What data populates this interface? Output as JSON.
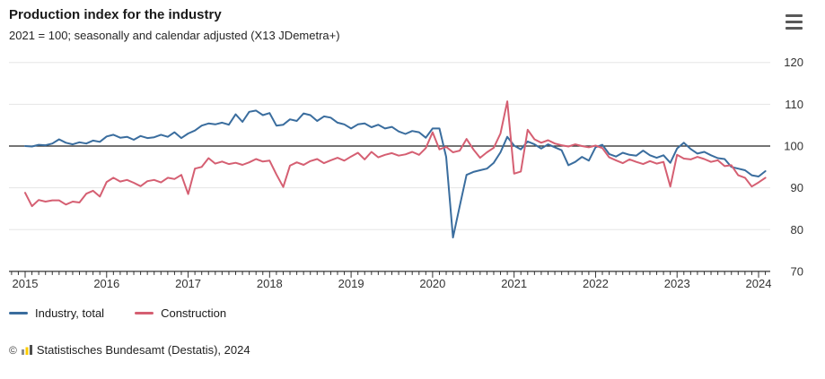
{
  "header": {
    "title": "Production index for the industry",
    "subtitle": "2021 = 100; seasonally and calendar adjusted (X13 JDemetra+)"
  },
  "menu": {
    "icon": "hamburger-menu-icon"
  },
  "chart_data": {
    "type": "line",
    "frequency": "monthly",
    "x_start": "2015-01",
    "x_end": "2024-02",
    "x_tick_labels": [
      "2015",
      "2016",
      "2017",
      "2018",
      "2019",
      "2020",
      "2021",
      "2022",
      "2023",
      "2024"
    ],
    "ylim": [
      70,
      120
    ],
    "y_ticks": [
      70,
      80,
      90,
      100,
      110,
      120
    ],
    "baseline": 100,
    "grid": "horizontal",
    "legend_position": "bottom",
    "axis_color": "#333333",
    "grid_color": "#e5e5e5",
    "baseline_color": "#222222",
    "series": [
      {
        "name": "Industry, total",
        "color": "#3a6d9e",
        "values": [
          100.0,
          99.9,
          100.3,
          100.2,
          100.6,
          101.6,
          100.8,
          100.4,
          100.9,
          100.6,
          101.3,
          101.0,
          102.3,
          102.7,
          102.0,
          102.2,
          101.5,
          102.4,
          101.9,
          102.1,
          102.7,
          102.2,
          103.3,
          101.9,
          103.0,
          103.7,
          104.9,
          105.4,
          105.2,
          105.6,
          105.1,
          107.6,
          105.8,
          108.2,
          108.5,
          107.4,
          107.9,
          104.9,
          105.1,
          106.4,
          106.0,
          107.8,
          107.4,
          106.0,
          107.1,
          106.8,
          105.6,
          105.2,
          104.2,
          105.2,
          105.4,
          104.5,
          105.1,
          104.2,
          104.6,
          103.5,
          102.9,
          103.6,
          103.3,
          102.0,
          104.2,
          104.2,
          97.4,
          78.1,
          85.6,
          93.1,
          93.8,
          94.2,
          94.6,
          96.0,
          98.5,
          102.2,
          100.1,
          99.2,
          101.1,
          100.4,
          99.4,
          100.4,
          99.7,
          99.0,
          95.4,
          96.2,
          97.4,
          96.5,
          99.7,
          100.3,
          98.1,
          97.5,
          98.4,
          97.9,
          97.7,
          98.9,
          97.8,
          97.2,
          97.8,
          96.0,
          99.4,
          100.8,
          99.3,
          98.2,
          98.6,
          97.8,
          97.1,
          96.9,
          95.0,
          94.6,
          94.2,
          93.0,
          92.7,
          94.0
        ]
      },
      {
        "name": "Construction",
        "color": "#d55f72",
        "values": [
          88.8,
          85.6,
          87.1,
          86.7,
          87.0,
          87.0,
          86.0,
          86.7,
          86.5,
          88.6,
          89.3,
          87.9,
          91.4,
          92.4,
          91.5,
          91.9,
          91.2,
          90.4,
          91.6,
          91.9,
          91.3,
          92.4,
          92.1,
          93.1,
          88.5,
          94.6,
          95.0,
          97.1,
          95.8,
          96.3,
          95.7,
          96.0,
          95.5,
          96.1,
          96.9,
          96.3,
          96.5,
          93.2,
          90.2,
          95.3,
          96.1,
          95.5,
          96.4,
          96.9,
          95.9,
          96.6,
          97.2,
          96.5,
          97.5,
          98.4,
          96.8,
          98.6,
          97.3,
          97.9,
          98.3,
          97.7,
          98.0,
          98.6,
          97.9,
          99.5,
          103.3,
          99.2,
          99.8,
          98.5,
          98.9,
          101.7,
          99.2,
          97.2,
          98.5,
          99.6,
          103.0,
          110.7,
          93.4,
          93.9,
          103.9,
          101.6,
          100.8,
          101.4,
          100.6,
          100.2,
          99.9,
          100.4,
          100.0,
          99.7,
          100.1,
          99.5,
          97.3,
          96.6,
          95.9,
          96.8,
          96.2,
          95.7,
          96.4,
          95.8,
          96.2,
          90.3,
          97.9,
          97.0,
          96.8,
          97.4,
          96.9,
          96.2,
          96.6,
          95.2,
          95.4,
          93.0,
          92.4,
          90.3,
          91.3,
          92.4
        ]
      }
    ]
  },
  "footer": {
    "copyright_symbol": "©",
    "source_icon": "bar-chart-icon",
    "source": "Statistisches Bundesamt (Destatis), 2024"
  }
}
